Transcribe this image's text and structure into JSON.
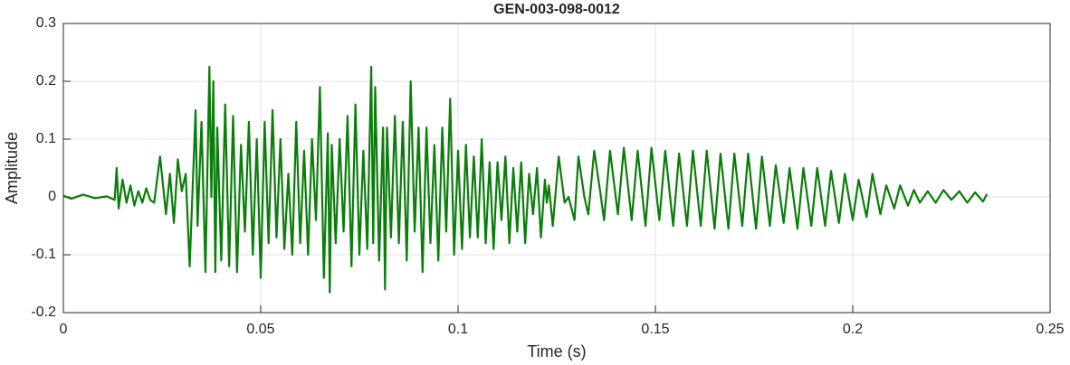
{
  "chart_data": {
    "type": "line",
    "title": "GEN-003-098-0012",
    "x_label": "Time (s)",
    "y_label": "Amplitude",
    "x": [
      0,
      0.002,
      0.005,
      0.008,
      0.011,
      0.013,
      0.0135,
      0.014,
      0.015,
      0.016,
      0.017,
      0.018,
      0.019,
      0.02,
      0.021,
      0.022,
      0.023,
      0.0245,
      0.026,
      0.027,
      0.028,
      0.029,
      0.03,
      0.031,
      0.032,
      0.0335,
      0.034,
      0.035,
      0.036,
      0.037,
      0.0375,
      0.038,
      0.0385,
      0.039,
      0.04,
      0.041,
      0.042,
      0.043,
      0.044,
      0.045,
      0.046,
      0.047,
      0.048,
      0.049,
      0.05,
      0.051,
      0.052,
      0.053,
      0.054,
      0.055,
      0.056,
      0.057,
      0.058,
      0.059,
      0.06,
      0.061,
      0.062,
      0.063,
      0.064,
      0.065,
      0.066,
      0.067,
      0.0675,
      0.068,
      0.069,
      0.07,
      0.071,
      0.072,
      0.073,
      0.074,
      0.075,
      0.076,
      0.077,
      0.078,
      0.0785,
      0.079,
      0.08,
      0.081,
      0.0815,
      0.082,
      0.083,
      0.084,
      0.085,
      0.086,
      0.087,
      0.088,
      0.089,
      0.09,
      0.091,
      0.092,
      0.093,
      0.094,
      0.095,
      0.096,
      0.097,
      0.098,
      0.099,
      0.1,
      0.101,
      0.102,
      0.103,
      0.104,
      0.105,
      0.106,
      0.107,
      0.108,
      0.109,
      0.11,
      0.111,
      0.112,
      0.113,
      0.114,
      0.115,
      0.116,
      0.117,
      0.118,
      0.119,
      0.12,
      0.121,
      0.122,
      0.1225,
      0.123,
      0.124,
      0.1255,
      0.127,
      0.128,
      0.1295,
      0.1305,
      0.132,
      0.133,
      0.1345,
      0.136,
      0.137,
      0.1385,
      0.1405,
      0.142,
      0.144,
      0.1455,
      0.1475,
      0.149,
      0.151,
      0.1525,
      0.1545,
      0.156,
      0.158,
      0.1595,
      0.1615,
      0.163,
      0.165,
      0.1665,
      0.1685,
      0.17,
      0.172,
      0.1735,
      0.1755,
      0.177,
      0.179,
      0.1805,
      0.1825,
      0.184,
      0.186,
      0.1875,
      0.1895,
      0.191,
      0.193,
      0.1945,
      0.1965,
      0.198,
      0.2,
      0.2015,
      0.2035,
      0.205,
      0.207,
      0.2085,
      0.2105,
      0.212,
      0.214,
      0.2155,
      0.217,
      0.219,
      0.221,
      0.223,
      0.225,
      0.227,
      0.229,
      0.231,
      0.233,
      0.234
    ],
    "values": [
      0.002,
      -0.003,
      0.004,
      -0.002,
      0.001,
      -0.005,
      0.05,
      -0.02,
      0.03,
      -0.01,
      0.02,
      -0.015,
      0.01,
      -0.01,
      0.015,
      -0.005,
      -0.01,
      0.07,
      -0.03,
      0.04,
      -0.045,
      0.065,
      0.01,
      0.04,
      -0.12,
      0.15,
      -0.05,
      0.13,
      -0.13,
      0.225,
      0,
      0.2,
      -0.13,
      0.12,
      -0.11,
      0.16,
      -0.12,
      0.14,
      -0.13,
      0.09,
      -0.06,
      0.13,
      -0.1,
      0.1,
      -0.14,
      0.13,
      -0.08,
      0.15,
      -0.07,
      0.1,
      -0.09,
      0.04,
      -0.1,
      0.13,
      -0.08,
      0.08,
      -0.1,
      0.1,
      -0.04,
      0.19,
      -0.14,
      0.11,
      -0.165,
      0.09,
      -0.08,
      0.1,
      -0.06,
      0.14,
      -0.12,
      0.16,
      -0.1,
      0.08,
      -0.09,
      0.225,
      -0.08,
      0.19,
      -0.11,
      0.12,
      -0.16,
      0.12,
      -0.07,
      0.14,
      -0.08,
      0.13,
      -0.11,
      0.2,
      -0.06,
      0.12,
      -0.13,
      0.12,
      -0.08,
      0.09,
      -0.11,
      0.12,
      -0.06,
      0.17,
      -0.1,
      0.08,
      -0.09,
      0.09,
      -0.07,
      0.07,
      -0.07,
      0.1,
      -0.08,
      0.06,
      -0.09,
      0.06,
      -0.04,
      0.07,
      -0.08,
      0.05,
      -0.06,
      0.06,
      -0.08,
      0.04,
      -0.03,
      0.05,
      -0.07,
      0.03,
      -0.01,
      0.02,
      -0.05,
      0.07,
      -0.01,
      0,
      -0.04,
      0.07,
      0,
      -0.03,
      0.08,
      0.01,
      -0.04,
      0.08,
      -0.03,
      0.085,
      -0.04,
      0.08,
      -0.05,
      0.085,
      -0.04,
      0.08,
      -0.05,
      0.075,
      -0.05,
      0.08,
      -0.05,
      0.08,
      -0.055,
      0.075,
      -0.055,
      0.075,
      -0.05,
      0.075,
      -0.055,
      0.07,
      -0.05,
      0.055,
      -0.045,
      0.05,
      -0.055,
      0.05,
      -0.05,
      0.05,
      -0.05,
      0.045,
      -0.045,
      0.04,
      -0.04,
      0.03,
      -0.035,
      0.04,
      -0.03,
      0.02,
      -0.02,
      0.02,
      -0.015,
      0.012,
      -0.01,
      0.01,
      -0.01,
      0.012,
      -0.005,
      0.01,
      -0.01,
      0.008,
      -0.008,
      0.005
    ],
    "color": "#0a7d0a",
    "xlim": [
      0,
      0.25
    ],
    "xticks": [
      0,
      0.05,
      0.1,
      0.15,
      0.2,
      0.25
    ],
    "ylim": [
      -0.2,
      0.3
    ],
    "yticks": [
      -0.2,
      -0.1,
      0,
      0.1,
      0.2,
      0.3
    ],
    "grid": true
  }
}
